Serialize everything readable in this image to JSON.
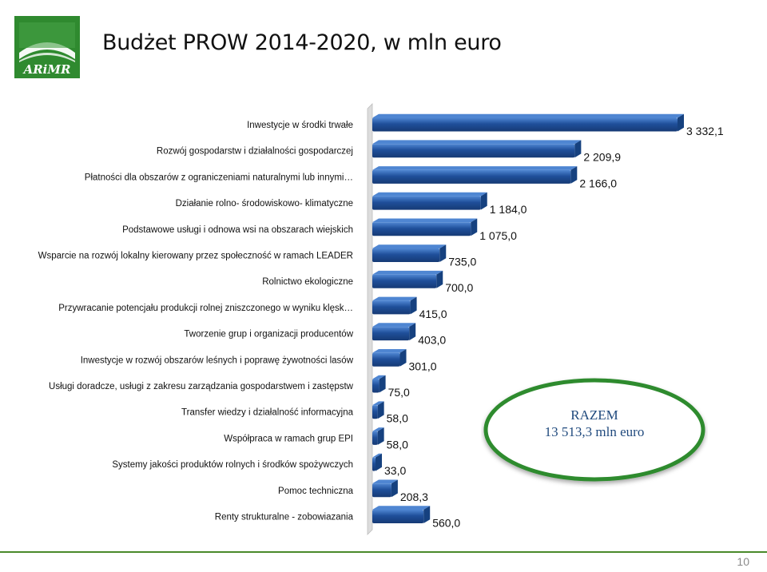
{
  "title": "Budżet PROW 2014-2020, w mln euro",
  "logo": {
    "text": "ARiMR",
    "colors": {
      "green": "#2f8a2f",
      "dark": "#1e6b1e"
    }
  },
  "total": {
    "line1": "RAZEM",
    "line2": "13 513,3 mln euro",
    "fill": "#ffffff",
    "border": "#2e8b2e"
  },
  "page_number": "10",
  "chart_data": {
    "type": "bar",
    "orientation": "horizontal",
    "categories": [
      "Inwestycje w środki trwałe",
      "Rozwój gospodarstw i działalności gospodarczej",
      "Płatności dla obszarów z ograniczeniami naturalnymi lub innymi…",
      "Działanie rolno- środowiskowo- klimatyczne",
      "Podstawowe usługi i odnowa wsi na obszarach wiejskich",
      "Wsparcie na rozwój lokalny kierowany przez społeczność w ramach LEADER",
      "Rolnictwo ekologiczne",
      "Przywracanie potencjału produkcji rolnej zniszczonego w wyniku klęsk…",
      "Tworzenie grup i organizacji producentów",
      "Inwestycje w rozwój obszarów leśnych i poprawę żywotności lasów",
      "Usługi doradcze, usługi z zakresu zarządzania gospodarstwem i zastępstw",
      "Transfer wiedzy i działalność informacyjna",
      "Współpraca w ramach grup EPI",
      "Systemy jakości produktów rolnych i środków spożywczych",
      "Pomoc techniczna",
      "Renty strukturalne - zobowiazania"
    ],
    "values": [
      3332.1,
      2209.9,
      2166.0,
      1184.0,
      1075.0,
      735.0,
      700.0,
      415.0,
      403.0,
      301.0,
      75.0,
      58.0,
      58.0,
      33.0,
      208.3,
      560.0
    ],
    "value_labels": [
      "3 332,1",
      "2 209,9",
      "2 166,0",
      "1 184,0",
      "1 075,0",
      "735,0",
      "700,0",
      "415,0",
      "403,0",
      "301,0",
      "75,0",
      "58,0",
      "58,0",
      "33,0",
      "208,3",
      "560,0"
    ],
    "bar_color": "#1f4f9a",
    "bar_color_light": "#4f86d2",
    "wall_color": "#dcdcdc",
    "xlim": [
      0,
      3332.1
    ],
    "grid": false,
    "legend": "none"
  }
}
